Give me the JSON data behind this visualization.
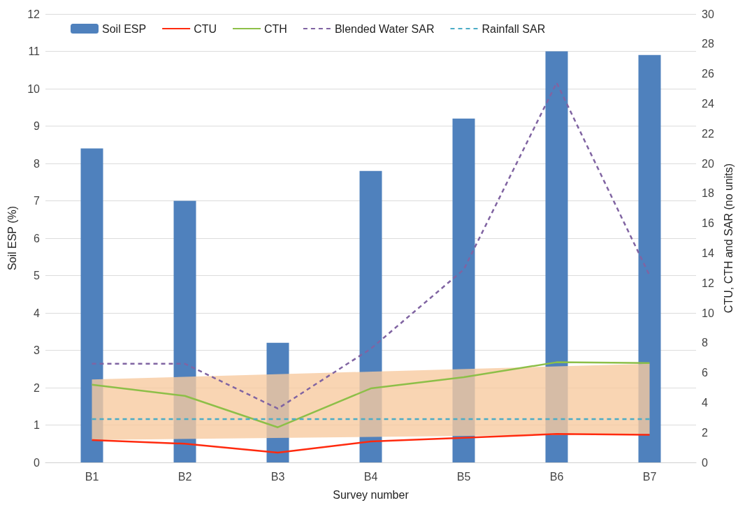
{
  "chart_data": {
    "type": "bar",
    "xlabel": "Survey number",
    "ylabel": "Soil ESP (%)",
    "y2label": "CTU, CTH and SAR (no units)",
    "categories": [
      "B1",
      "B2",
      "B3",
      "B4",
      "B5",
      "B6",
      "B7"
    ],
    "series": [
      {
        "name": "Soil ESP",
        "color": "#4f81bd",
        "values": [
          8.4,
          7.0,
          3.2,
          7.8,
          9.2,
          11.0,
          10.9
        ]
      },
      {
        "type": "area",
        "axis": "y2",
        "color": "#f8cba0",
        "values": [
          null,
          null,
          null,
          null,
          null,
          null,
          null
        ],
        "lower": [
          1.5,
          null,
          null,
          null,
          null,
          null,
          1.9
        ],
        "upper": [
          5.55,
          null,
          null,
          null,
          null,
          null,
          6.6
        ]
      },
      {
        "name": "CTU",
        "type": "line",
        "axis": "y2",
        "color": "#ff2a0e",
        "line_style": "solid",
        "values": [
          1.5,
          1.25,
          0.65,
          1.4,
          1.65,
          1.9,
          1.85
        ]
      },
      {
        "name": "CTH",
        "type": "line",
        "axis": "y2",
        "color": "#8dbf48",
        "line_style": "solid",
        "values": [
          5.2,
          4.45,
          2.35,
          4.95,
          5.7,
          6.7,
          6.65
        ]
      },
      {
        "name": "Blended Water SAR",
        "type": "line",
        "axis": "y2",
        "color": "#8064a2",
        "line_style": "dashed",
        "values": [
          6.6,
          6.6,
          3.6,
          7.6,
          12.9,
          25.4,
          12.5
        ]
      },
      {
        "name": "Rainfall SAR",
        "type": "line",
        "axis": "y2",
        "color": "#4bacc6",
        "line_style": "dashed",
        "values": [
          2.9,
          2.9,
          2.9,
          2.9,
          2.9,
          2.9,
          2.9
        ]
      }
    ],
    "ylim": [
      0,
      12
    ],
    "yticks": [
      0,
      1,
      2,
      3,
      4,
      5,
      6,
      7,
      8,
      9,
      10,
      11,
      12
    ],
    "y2lim": [
      0,
      30
    ],
    "y2ticks": [
      0,
      2,
      4,
      6,
      8,
      10,
      12,
      14,
      16,
      18,
      20,
      22,
      24,
      26,
      28,
      30
    ],
    "grid": "y",
    "legend": "top",
    "marker": "none"
  }
}
